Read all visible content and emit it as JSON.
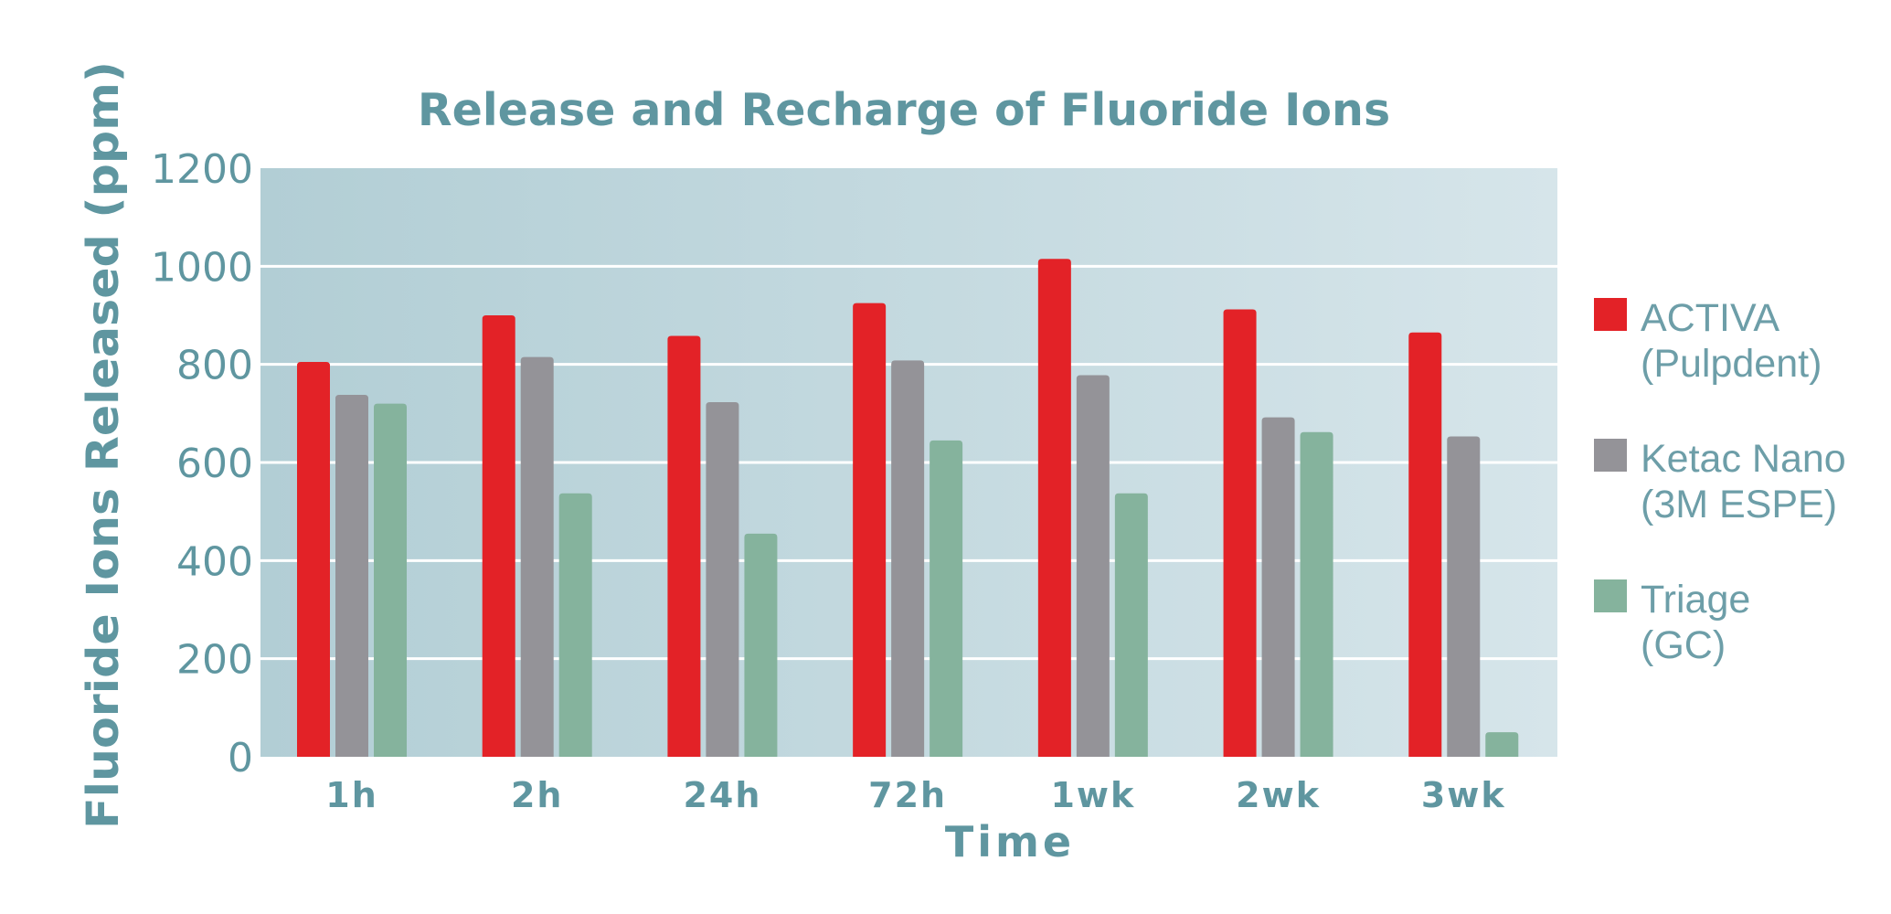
{
  "chart_data": {
    "type": "bar",
    "title": "Release and Recharge of Fluoride Ions",
    "xlabel": "Time",
    "ylabel": "Fluoride Ions Released (ppm)",
    "categories": [
      "1h",
      "2h",
      "24h",
      "72h",
      "1wk",
      "2wk",
      "3wk"
    ],
    "ylim": [
      0,
      1200
    ],
    "yticks": [
      0,
      200,
      400,
      600,
      800,
      1000,
      1200
    ],
    "grid": true,
    "legend_position": "right",
    "series": [
      {
        "name_lines": [
          "ACTIVA",
          "(Pulpdent)"
        ],
        "color": "#e32227",
        "values": [
          805,
          900,
          858,
          925,
          1015,
          912,
          865
        ]
      },
      {
        "name_lines": [
          "Ketac Nano",
          "(3M ESPE)"
        ],
        "color": "#949398",
        "values": [
          738,
          815,
          723,
          808,
          778,
          692,
          653
        ]
      },
      {
        "name_lines": [
          "Triage",
          "(GC)"
        ],
        "color": "#85b39d",
        "values": [
          720,
          537,
          455,
          645,
          537,
          662,
          50
        ]
      }
    ],
    "colors": {
      "text": "#5f96a0",
      "legend_text": "#6d9ea8",
      "plot_bg_left": "#b2ced5",
      "plot_bg_right": "#d6e5ea",
      "grid": "#ffffff"
    }
  }
}
